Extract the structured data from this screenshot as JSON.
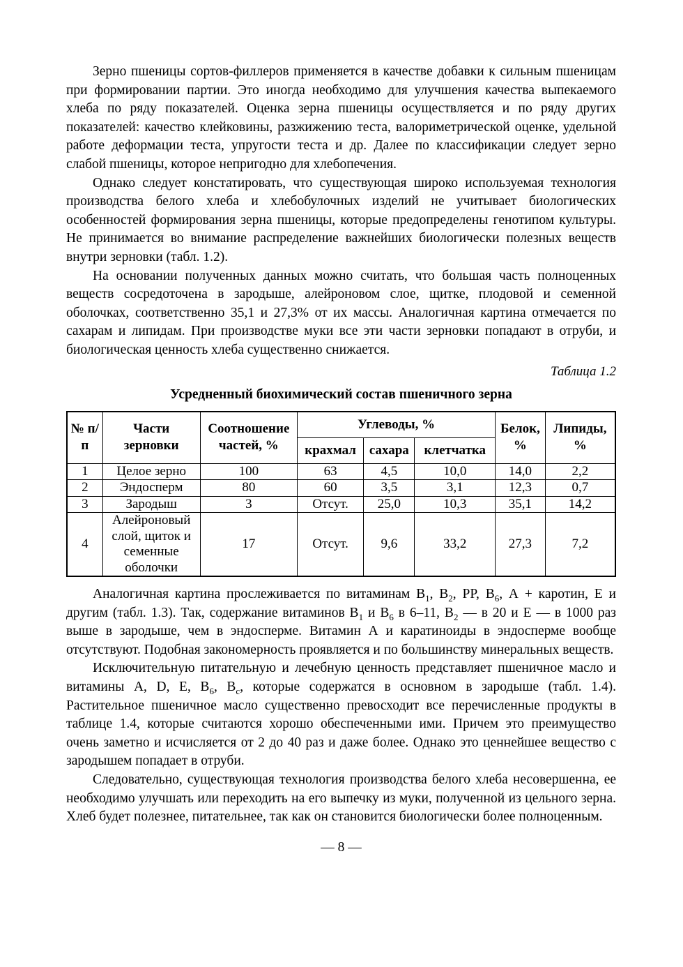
{
  "page_number": "— 8 —",
  "paragraphs": [
    {
      "segments": [
        {
          "t": "Зерно пшеницы сортов-филлеров применяется в качестве добавки к сильным пшеницам при формировании партии. Это иногда необходимо для улучшения качества выпекаемого хлеба по ряду показателей. Оценка зерна пшеницы осуществляется и по ряду других показателей: качество клейковины, разжижению теста, валориметрической оценке, удельной работе деформации теста, упругости теста и др. Далее по классификации следует зерно слабой пшеницы, которое непригодно для хлебопечения."
        }
      ]
    },
    {
      "segments": [
        {
          "t": "Однако следует констатировать, что существующая широко используемая технология производства белого хлеба и хлебобулочных изделий не учитывает биологических особенностей формирования зерна пшеницы, которые предопределены генотипом культуры. Не принимается во внимание распределение важнейших биологически полезных веществ внутри зерновки (табл. 1.2)."
        }
      ]
    },
    {
      "segments": [
        {
          "t": "На основании полученных данных можно считать, что большая часть полноценных веществ сосредоточена в зародыше, алейроновом слое, щитке, плодовой и семенной оболочках, соответственно 35,1 и 27,3% от их массы. Аналогичная картина отмечается по сахарам и липидам. При производстве муки все эти части зерновки попадают в отруби, и биологическая ценность хлеба существенно снижается."
        }
      ]
    },
    {
      "segments": [
        {
          "t": "Аналогичная картина прослеживается по витаминам B"
        },
        {
          "t": "1",
          "s": "sub"
        },
        {
          "t": ", B"
        },
        {
          "t": "2",
          "s": "sub"
        },
        {
          "t": ", PP, B"
        },
        {
          "t": "6",
          "s": "sub"
        },
        {
          "t": ", А + каротин, Е и другим (табл. 1.3). Так, содержание витаминов B"
        },
        {
          "t": "1",
          "s": "sub"
        },
        {
          "t": " и B"
        },
        {
          "t": "6",
          "s": "sub"
        },
        {
          "t": " в 6–11, B"
        },
        {
          "t": "2",
          "s": "sub"
        },
        {
          "t": " — в 20 и Е — в 1000 раз выше в зародыше, чем в эндосперме. Витамин А и каратиноиды в эндосперме вообще отсутствуют. Подобная закономерность проявляется и по большинству минеральных веществ."
        }
      ]
    },
    {
      "segments": [
        {
          "t": "Исключительную питательную и лечебную ценность представляет пшеничное масло и витамины A, D, E, B"
        },
        {
          "t": "6",
          "s": "sub"
        },
        {
          "t": ", B"
        },
        {
          "t": "с",
          "s": "sub"
        },
        {
          "t": ", которые содержатся в основном в зародыше (табл. 1.4). Растительное пшеничное масло существенно превосходит все перечисленные продукты в таблице 1.4, которые считаются хорошо обеспеченными ими. Причем это преимущество очень заметно и исчисляется от 2 до 40 раз и даже более. Однако это ценнейшее вещество с зародышем попадает в отруби."
        }
      ]
    },
    {
      "segments": [
        {
          "t": "Следовательно, существующая технология производства белого хлеба несовершенна, ее необходимо улучшать или переходить на его выпечку из муки, полученной из цельного зерна. Хлеб будет полезнее, питательнее, так как он становится биологически более полноценным."
        }
      ]
    }
  ],
  "table": {
    "caption": "Таблица 1.2",
    "title": "Усредненный биохимический состав пшеничного зерна",
    "headers": {
      "num": "№ п/п",
      "part": "Части зерновки",
      "ratio": "Соотношение частей, %",
      "carbs": "Углеводы, %",
      "starch": "крахмал",
      "sugar": "сахара",
      "fiber": "клетчатка",
      "protein": "Белок, %",
      "lipids": "Липиды, %"
    },
    "rows": [
      {
        "num": "1",
        "part": "Целое зерно",
        "ratio": "100",
        "starch": "63",
        "sugar": "4,5",
        "fiber": "10,0",
        "protein": "14,0",
        "lipids": "2,2"
      },
      {
        "num": "2",
        "part": "Эндосперм",
        "ratio": "80",
        "starch": "60",
        "sugar": "3,5",
        "fiber": "3,1",
        "protein": "12,3",
        "lipids": "0,7"
      },
      {
        "num": "3",
        "part": "Зародыш",
        "ratio": "3",
        "starch": "Отсут.",
        "sugar": "25,0",
        "fiber": "10,3",
        "protein": "35,1",
        "lipids": "14,2"
      },
      {
        "num": "4",
        "part": "Алейроновый слой, щиток и семенные оболочки",
        "ratio": "17",
        "starch": "Отсут.",
        "sugar": "9,6",
        "fiber": "33,2",
        "protein": "27,3",
        "lipids": "7,2"
      }
    ]
  }
}
